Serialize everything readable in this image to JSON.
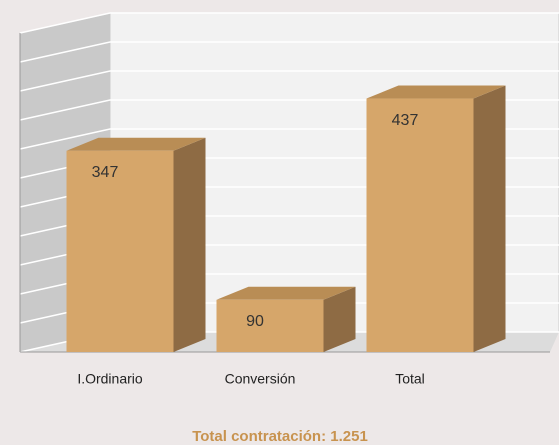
{
  "chart_data": {
    "type": "bar3d",
    "categories": [
      "I.Ordinario",
      "Conversión",
      "Total"
    ],
    "values": [
      347,
      90,
      437
    ],
    "color": "#d6a66a",
    "ylim": [
      0,
      550
    ],
    "yticks": [
      0,
      50,
      100,
      150,
      200,
      250,
      300,
      350,
      400,
      450,
      500,
      550
    ],
    "grid": true,
    "footer": "Total contratación: 1.251"
  }
}
